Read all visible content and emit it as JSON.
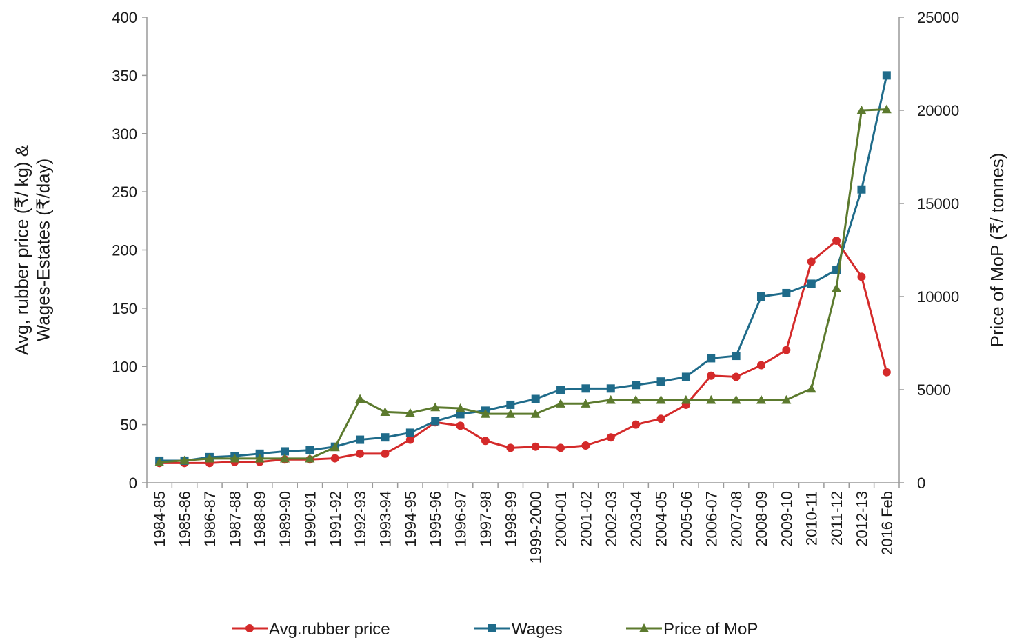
{
  "chart_data": {
    "type": "line",
    "x": [
      "1984-85",
      "1985-86",
      "1986-87",
      "1987-88",
      "1988-89",
      "1989-90",
      "1990-91",
      "1991-92",
      "1992-93",
      "1993-94",
      "1994-95",
      "1995-96",
      "1996-97",
      "1997-98",
      "1998-99",
      "1999-2000",
      "2000-01",
      "2001-02",
      "2002-03",
      "2003-04",
      "2004-05",
      "2005-06",
      "2006-07",
      "2007-08",
      "2008-09",
      "2009-10",
      "2010-11",
      "2011-12",
      "2012-13",
      "2016 Feb"
    ],
    "y_left": {
      "label": "Avg, rubber price (₹/ kg) &\nWages-Estates (₹/day)",
      "label_lines": [
        "Avg, rubber price (₹/ kg) &",
        "Wages-Estates (₹/day)"
      ],
      "range": [
        0,
        400
      ],
      "ticks": [
        0,
        50,
        100,
        150,
        200,
        250,
        300,
        350,
        400
      ]
    },
    "y_right": {
      "label": "Price of MoP (₹/ tonnes)",
      "range": [
        0,
        25000
      ],
      "ticks": [
        0,
        5000,
        10000,
        15000,
        20000,
        25000
      ]
    },
    "series": [
      {
        "name": "Avg.rubber price",
        "axis": "left",
        "color": "#d42a2a",
        "marker": "circle",
        "values": [
          17,
          17,
          17,
          18,
          18,
          20,
          20,
          21,
          25,
          25,
          37,
          52,
          49,
          36,
          30,
          31,
          30,
          32,
          39,
          50,
          55,
          67,
          92,
          91,
          101,
          114,
          190,
          208,
          177,
          95
        ]
      },
      {
        "name": "Wages",
        "axis": "left",
        "color": "#1f6b8a",
        "marker": "square",
        "values": [
          19,
          19,
          22,
          23,
          25,
          27,
          28,
          31,
          37,
          39,
          43,
          53,
          59,
          62,
          67,
          72,
          80,
          81,
          81,
          84,
          87,
          91,
          107,
          109,
          160,
          163,
          171,
          183,
          252,
          350
        ]
      },
      {
        "name": "Price of MoP",
        "axis": "right",
        "color": "#5c7a2e",
        "marker": "triangle",
        "values": [
          1100,
          1200,
          1300,
          1300,
          1300,
          1300,
          1300,
          1900,
          4500,
          3800,
          3750,
          4050,
          4000,
          3700,
          3700,
          3700,
          4250,
          4250,
          4450,
          4450,
          4450,
          4450,
          4450,
          4450,
          4450,
          4450,
          5050,
          10450,
          20000,
          20050
        ]
      }
    ],
    "legend": "bottom",
    "grid": false
  }
}
